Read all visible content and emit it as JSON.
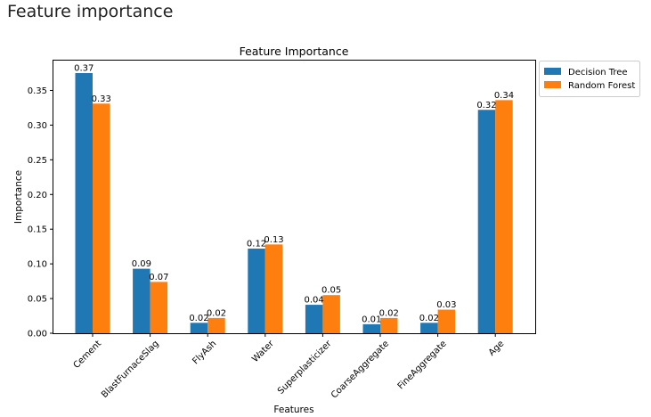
{
  "page": {
    "heading": "Feature importance"
  },
  "chart_data": {
    "type": "bar",
    "title": "Feature Importance",
    "xlabel": "Features",
    "ylabel": "Importance",
    "categories": [
      "Cement",
      "BlastFurnaceSlag",
      "FlyAsh",
      "Water",
      "Superplasticizer",
      "CoarseAggregate",
      "FineAggregate",
      "Age"
    ],
    "series": [
      {
        "name": "Decision Tree",
        "color": "#1f77b4",
        "values": [
          0.375,
          0.093,
          0.015,
          0.122,
          0.041,
          0.013,
          0.015,
          0.322
        ],
        "labels": [
          "0.37",
          "0.09",
          "0.02",
          "0.12",
          "0.04",
          "0.01",
          "0.02",
          "0.32"
        ]
      },
      {
        "name": "Random Forest",
        "color": "#ff7f0e",
        "values": [
          0.331,
          0.074,
          0.022,
          0.128,
          0.055,
          0.022,
          0.034,
          0.336
        ],
        "labels": [
          "0.33",
          "0.07",
          "0.02",
          "0.13",
          "0.05",
          "0.02",
          "0.03",
          "0.34"
        ]
      }
    ],
    "ylim": [
      0,
      0.393
    ],
    "yticks": [
      0.0,
      0.05,
      0.1,
      0.15,
      0.2,
      0.25,
      0.3,
      0.35
    ],
    "ytick_labels": [
      "0.00",
      "0.05",
      "0.10",
      "0.15",
      "0.20",
      "0.25",
      "0.30",
      "0.35"
    ],
    "grid": false,
    "legend_position": "outside-top-right"
  }
}
